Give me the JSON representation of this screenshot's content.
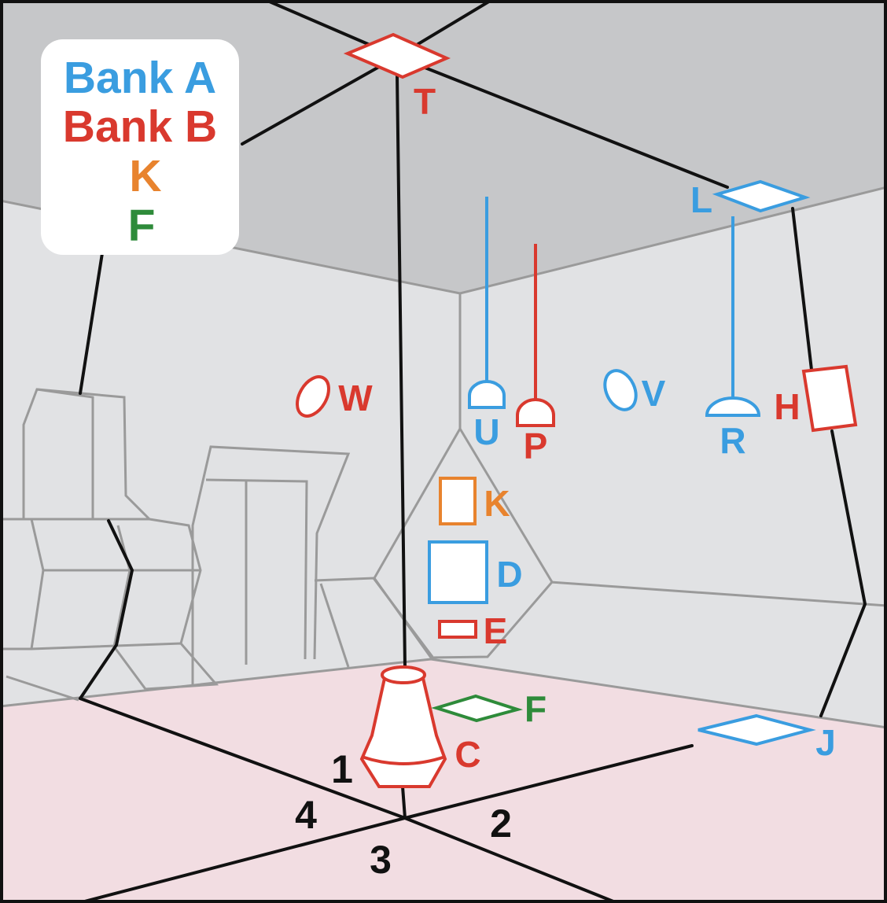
{
  "colors": {
    "bank_a": "#3a9de0",
    "bank_b": "#d9392e",
    "k": "#e8832e",
    "f": "#2e8b3a",
    "ceiling": "#c6c7c9",
    "wall": "#e1e2e4",
    "floor": "#f2dde2",
    "outline": "#111111",
    "furniture": "#9a9a9a"
  },
  "legend": {
    "bank_a": "Bank A",
    "bank_b": "Bank B",
    "k": "K",
    "f": "F"
  },
  "fixtures": {
    "T": "T",
    "L": "L",
    "U": "U",
    "P": "P",
    "R": "R",
    "W": "W",
    "V": "V",
    "H": "H",
    "K": "K",
    "D": "D",
    "E": "E",
    "C": "C",
    "F": "F",
    "J": "J"
  },
  "quadrants": {
    "q1": "1",
    "q2": "2",
    "q3": "3",
    "q4": "4"
  }
}
